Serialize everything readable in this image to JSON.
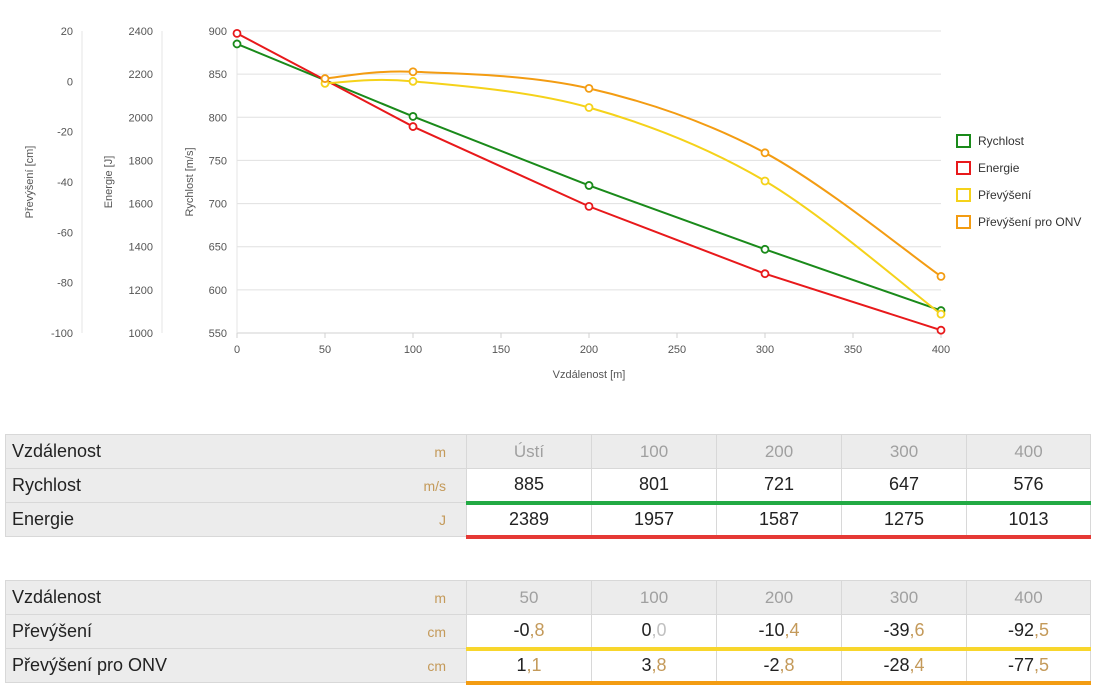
{
  "chart_data": {
    "type": "line",
    "xlabel": "Vzdálenost [m]",
    "xlim": [
      0,
      400
    ],
    "xticks": [
      0,
      50,
      100,
      150,
      200,
      250,
      300,
      350,
      400
    ],
    "axes": [
      {
        "id": "speed",
        "label": "Rychlost [m/s]",
        "range": [
          550,
          900
        ],
        "ticks": [
          550,
          600,
          650,
          700,
          750,
          800,
          850,
          900
        ]
      },
      {
        "id": "energy",
        "label": "Energie [J]",
        "range": [
          1000,
          2400
        ],
        "ticks": [
          1000,
          1200,
          1400,
          1600,
          1800,
          2000,
          2200,
          2400
        ]
      },
      {
        "id": "drop",
        "label": "Převýšení [cm]",
        "range": [
          -100,
          20
        ],
        "ticks": [
          -100,
          -80,
          -60,
          -40,
          -20,
          0,
          20
        ]
      }
    ],
    "series": [
      {
        "name": "Rychlost",
        "axis": "speed",
        "color": "#1a8a1a",
        "x": [
          0,
          100,
          200,
          300,
          400
        ],
        "y": [
          885,
          801,
          721,
          647,
          576
        ]
      },
      {
        "name": "Energie",
        "axis": "energy",
        "color": "#e8191b",
        "x": [
          0,
          100,
          200,
          300,
          400
        ],
        "y": [
          2389,
          1957,
          1587,
          1275,
          1013
        ]
      },
      {
        "name": "Převýšení",
        "axis": "drop",
        "color": "#f5d21a",
        "x": [
          50,
          100,
          200,
          300,
          400
        ],
        "y": [
          -0.8,
          0.0,
          -10.4,
          -39.6,
          -92.5
        ]
      },
      {
        "name": "Převýšení pro ONV",
        "axis": "drop",
        "color": "#f39c12",
        "x": [
          50,
          100,
          200,
          300,
          400
        ],
        "y": [
          1.1,
          3.8,
          -2.8,
          -28.4,
          -77.5
        ]
      }
    ]
  },
  "table1": {
    "header_label": "Vzdálenost",
    "header_unit": "m",
    "columns": [
      "Ústí",
      "100",
      "200",
      "300",
      "400"
    ],
    "rows": [
      {
        "label": "Rychlost",
        "unit": "m/s",
        "values": [
          "885",
          "801",
          "721",
          "647",
          "576"
        ]
      },
      {
        "label": "Energie",
        "unit": "J",
        "values": [
          "2389",
          "1957",
          "1587",
          "1275",
          "1013"
        ]
      }
    ]
  },
  "table2": {
    "header_label": "Vzdálenost",
    "header_unit": "m",
    "columns": [
      "50",
      "100",
      "200",
      "300",
      "400"
    ],
    "rows": [
      {
        "label": "Převýšení",
        "unit": "cm",
        "values": [
          {
            "int": "-0",
            "dec": ",8"
          },
          {
            "int": "0",
            "dec": ",0"
          },
          {
            "int": "-10",
            "dec": ",4"
          },
          {
            "int": "-39",
            "dec": ",6"
          },
          {
            "int": "-92",
            "dec": ",5"
          }
        ]
      },
      {
        "label": "Převýšení pro ONV",
        "unit": "cm",
        "values": [
          {
            "int": "1",
            "dec": ",1"
          },
          {
            "int": "3",
            "dec": ",8"
          },
          {
            "int": "-2",
            "dec": ",8"
          },
          {
            "int": "-28",
            "dec": ",4"
          },
          {
            "int": "-77",
            "dec": ",5"
          }
        ]
      }
    ]
  }
}
